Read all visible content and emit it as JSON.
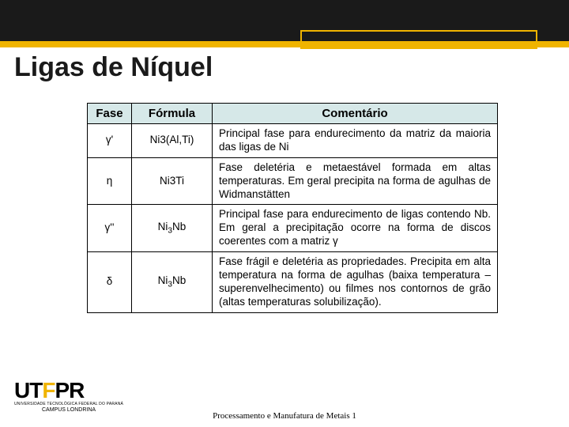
{
  "header": {
    "title": "Ligas de Níquel",
    "top_bar_color": "#1a1a1a",
    "accent_color": "#f0b400"
  },
  "table": {
    "header_bg": "#d6e8e8",
    "columns": [
      "Fase",
      "Fórmula",
      "Comentário"
    ],
    "rows": [
      {
        "fase": "γ'",
        "formula": "Ni3(Al,Ti)",
        "comentario": "Principal fase para endurecimento da matriz da maioria das ligas de Ni"
      },
      {
        "fase": "η",
        "formula": "Ni3Ti",
        "comentario": "Fase deletéria e metaestável formada em altas temperaturas. Em geral precipita na forma de agulhas de Widmanstätten"
      },
      {
        "fase": "γ''",
        "formula_html": "Ni<sub>3</sub>Nb",
        "comentario": "Principal fase para endurecimento de ligas contendo Nb. Em geral a precipitação ocorre na forma de discos coerentes com a matriz γ"
      },
      {
        "fase": "δ",
        "formula_html": "Ni<sub>3</sub>Nb",
        "comentario": "Fase frágil e deletéria as propriedades. Precipita em alta temperatura na forma de agulhas (baixa temperatura – superenvelhecimento) ou filmes nos contornos de grão (altas temperaturas solubilização)."
      }
    ]
  },
  "logo": {
    "text_black1": "UT",
    "text_yellow": "F",
    "text_black2": "PR",
    "sub1": "UNIVERSIDADE TECNOLÓGICA FEDERAL DO PARANÁ",
    "sub2": "CAMPUS LONDRINA"
  },
  "footer": {
    "text": "Processamento e Manufatura de Metais 1"
  }
}
